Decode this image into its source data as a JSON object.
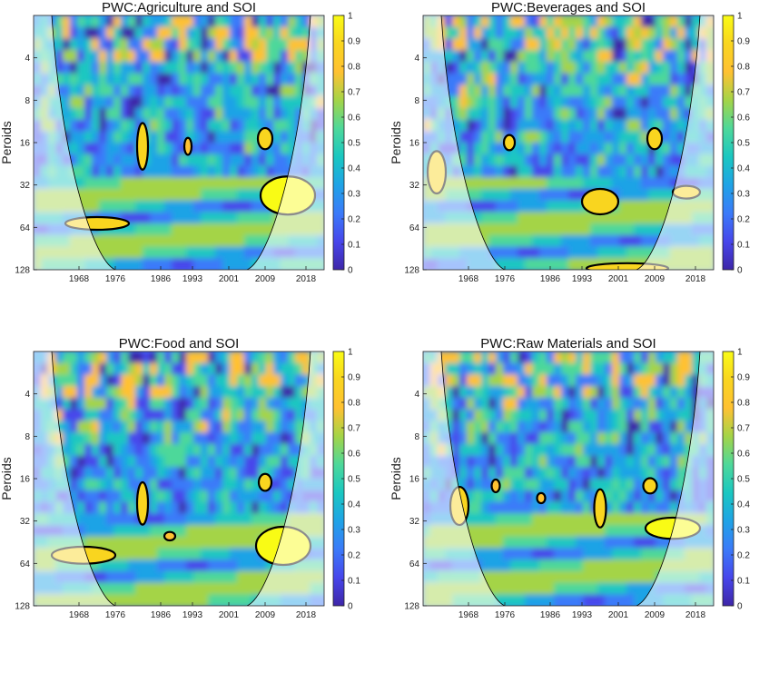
{
  "colors": {
    "colormap": [
      "#3e26a8",
      "#4746eb",
      "#3b7af9",
      "#1fa3e6",
      "#1ac7c1",
      "#4ed89a",
      "#a4d447",
      "#ffc132",
      "#f9d51f",
      "#f9fb15"
    ],
    "significance_contour": "#000000",
    "coi_shading": "#ffffff"
  },
  "chart_data": [
    {
      "type": "heatmap",
      "title": "PWC:Agriculture and SOI",
      "ylabel": "Peroids",
      "xlabel": "",
      "x_ticks": [
        "1968",
        "1976",
        "1986",
        "1993",
        "2001",
        "2009",
        "2018"
      ],
      "y_ticks": [
        "4",
        "8",
        "16",
        "32",
        "64",
        "128"
      ],
      "y_scale": "log2",
      "ylim": [
        2,
        128
      ],
      "colorbar": {
        "ticks": [
          "0",
          "0.1",
          "0.2",
          "0.3",
          "0.4",
          "0.5",
          "0.6",
          "0.7",
          "0.8",
          "0.9",
          "1"
        ],
        "range": [
          0,
          1
        ]
      },
      "high_regions": [
        {
          "year": 1972,
          "period": 60,
          "coherence": 0.85,
          "extent_years": 7,
          "extent_octaves": 0.15
        },
        {
          "year": 1982,
          "period": 17,
          "coherence": 0.85,
          "extent_years": 1.2,
          "extent_octaves": 0.55
        },
        {
          "year": 1992,
          "period": 17,
          "coherence": 0.75,
          "extent_years": 0.8,
          "extent_octaves": 0.2
        },
        {
          "year": 2009,
          "period": 15,
          "coherence": 0.85,
          "extent_years": 1.6,
          "extent_octaves": 0.25
        },
        {
          "year": 2014,
          "period": 38,
          "coherence": 0.9,
          "extent_years": 6,
          "extent_octaves": 0.45
        }
      ]
    },
    {
      "type": "heatmap",
      "title": "PWC:Beverages and SOI",
      "ylabel": "Peroids",
      "xlabel": "",
      "x_ticks": [
        "1968",
        "1976",
        "1986",
        "1993",
        "2001",
        "2009",
        "2018"
      ],
      "y_ticks": [
        "4",
        "8",
        "16",
        "32",
        "64",
        "128"
      ],
      "y_scale": "log2",
      "ylim": [
        2,
        128
      ],
      "colorbar": {
        "ticks": [
          "0",
          "0.1",
          "0.2",
          "0.3",
          "0.4",
          "0.5",
          "0.6",
          "0.7",
          "0.8",
          "0.9",
          "1"
        ],
        "range": [
          0,
          1
        ]
      },
      "high_regions": [
        {
          "year": 1961,
          "period": 26,
          "coherence": 0.85,
          "extent_years": 2,
          "extent_octaves": 0.5
        },
        {
          "year": 1977,
          "period": 16,
          "coherence": 0.8,
          "extent_years": 1.2,
          "extent_octaves": 0.18
        },
        {
          "year": 1997,
          "period": 42,
          "coherence": 0.85,
          "extent_years": 4,
          "extent_octaves": 0.3
        },
        {
          "year": 2009,
          "period": 15,
          "coherence": 0.85,
          "extent_years": 1.6,
          "extent_octaves": 0.25
        },
        {
          "year": 2016,
          "period": 36,
          "coherence": 0.8,
          "extent_years": 3,
          "extent_octaves": 0.15
        },
        {
          "year": 2003,
          "period": 125,
          "coherence": 0.85,
          "extent_years": 9,
          "extent_octaves": 0.12
        }
      ]
    },
    {
      "type": "heatmap",
      "title": "PWC:Food and SOI",
      "ylabel": "Peroids",
      "xlabel": "",
      "x_ticks": [
        "1968",
        "1976",
        "1986",
        "1993",
        "2001",
        "2009",
        "2018"
      ],
      "y_ticks": [
        "4",
        "8",
        "16",
        "32",
        "64",
        "128"
      ],
      "y_scale": "log2",
      "ylim": [
        2,
        128
      ],
      "colorbar": {
        "ticks": [
          "0",
          "0.1",
          "0.2",
          "0.3",
          "0.4",
          "0.5",
          "0.6",
          "0.7",
          "0.8",
          "0.9",
          "1"
        ],
        "range": [
          0,
          1
        ]
      },
      "high_regions": [
        {
          "year": 1969,
          "period": 56,
          "coherence": 0.85,
          "extent_years": 7,
          "extent_octaves": 0.2
        },
        {
          "year": 1982,
          "period": 24,
          "coherence": 0.85,
          "extent_years": 1.2,
          "extent_octaves": 0.5
        },
        {
          "year": 1988,
          "period": 41,
          "coherence": 0.75,
          "extent_years": 1.2,
          "extent_octaves": 0.1
        },
        {
          "year": 2009,
          "period": 17,
          "coherence": 0.85,
          "extent_years": 1.4,
          "extent_octaves": 0.2
        },
        {
          "year": 2013,
          "period": 48,
          "coherence": 0.9,
          "extent_years": 6,
          "extent_octaves": 0.45
        }
      ]
    },
    {
      "type": "heatmap",
      "title": "PWC:Raw Materials and SOI",
      "ylabel": "Peroids",
      "xlabel": "",
      "x_ticks": [
        "1968",
        "1976",
        "1986",
        "1993",
        "2001",
        "2009",
        "2018"
      ],
      "y_ticks": [
        "4",
        "8",
        "16",
        "32",
        "64",
        "128"
      ],
      "y_scale": "log2",
      "ylim": [
        2,
        128
      ],
      "colorbar": {
        "ticks": [
          "0",
          "0.1",
          "0.2",
          "0.3",
          "0.4",
          "0.5",
          "0.6",
          "0.7",
          "0.8",
          "0.9",
          "1"
        ],
        "range": [
          0,
          1
        ]
      },
      "high_regions": [
        {
          "year": 1966,
          "period": 25,
          "coherence": 0.85,
          "extent_years": 2,
          "extent_octaves": 0.45
        },
        {
          "year": 1974,
          "period": 18,
          "coherence": 0.75,
          "extent_years": 0.9,
          "extent_octaves": 0.15
        },
        {
          "year": 1984,
          "period": 22,
          "coherence": 0.75,
          "extent_years": 0.9,
          "extent_octaves": 0.12
        },
        {
          "year": 1997,
          "period": 26,
          "coherence": 0.85,
          "extent_years": 1.3,
          "extent_octaves": 0.45
        },
        {
          "year": 2008,
          "period": 18,
          "coherence": 0.8,
          "extent_years": 1.5,
          "extent_octaves": 0.18
        },
        {
          "year": 2013,
          "period": 36,
          "coherence": 0.9,
          "extent_years": 6,
          "extent_octaves": 0.25
        }
      ]
    }
  ]
}
